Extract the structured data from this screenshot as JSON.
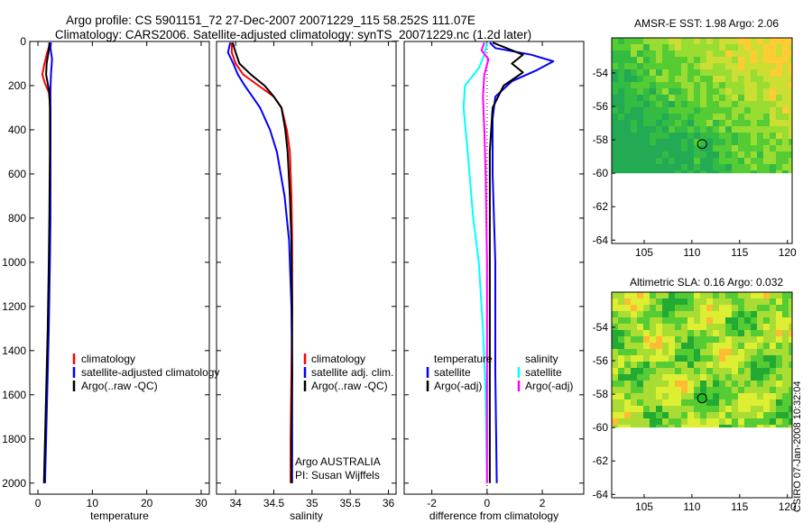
{
  "header": {
    "line1": "Argo profile: CS 5901151_72 27-Dec-2007 20071229_115 58.252S 111.07E",
    "line2": "Climatology: CARS2006. Satellite-adjusted climatology: synTS_20071229.nc (1.2d later)"
  },
  "colors": {
    "red": "#ff0000",
    "blue": "#0000ff",
    "black": "#000000",
    "cyan": "#00ffff",
    "magenta": "#ff00ff"
  },
  "chart_data": [
    {
      "type": "line",
      "id": "temperature",
      "xlabel": "temperature",
      "xlim": [
        -1.5,
        31.5
      ],
      "ylim": [
        0,
        2050
      ],
      "yreversed": true,
      "xticks": [
        0,
        10,
        20,
        30
      ],
      "yticks": [
        0,
        200,
        400,
        600,
        800,
        1000,
        1200,
        1400,
        1600,
        1800,
        2000
      ],
      "legend": {
        "placement": "lower-right",
        "entries": [
          "climatology",
          "satellite-adjusted climatology",
          "Argo(..raw -QC)"
        ]
      },
      "series": [
        {
          "name": "climatology",
          "color": "red",
          "points": [
            [
              2.3,
              5
            ],
            [
              1.7,
              50
            ],
            [
              1.2,
              100
            ],
            [
              0.8,
              150
            ],
            [
              1.3,
              190
            ],
            [
              2.0,
              230
            ],
            [
              2.3,
              300
            ],
            [
              2.3,
              500
            ],
            [
              2.2,
              800
            ],
            [
              2.1,
              1000
            ],
            [
              1.9,
              1300
            ],
            [
              1.7,
              1500
            ],
            [
              1.5,
              1700
            ],
            [
              1.3,
              1900
            ],
            [
              1.2,
              2000
            ]
          ]
        },
        {
          "name": "satellite-adjusted climatology",
          "color": "blue",
          "points": [
            [
              2.4,
              5
            ],
            [
              2.3,
              30
            ],
            [
              2.6,
              80
            ],
            [
              2.4,
              150
            ],
            [
              2.3,
              220
            ],
            [
              2.3,
              300
            ],
            [
              2.3,
              500
            ],
            [
              2.3,
              800
            ],
            [
              2.2,
              1000
            ],
            [
              2.0,
              1300
            ],
            [
              1.8,
              1500
            ],
            [
              1.6,
              1700
            ],
            [
              1.4,
              1900
            ],
            [
              1.3,
              2000
            ]
          ]
        },
        {
          "name": "Argo(..raw -QC)",
          "color": "black",
          "points": [
            [
              2.1,
              5
            ],
            [
              2.0,
              40
            ],
            [
              1.6,
              100
            ],
            [
              1.5,
              150
            ],
            [
              1.8,
              190
            ],
            [
              2.1,
              230
            ],
            [
              2.2,
              300
            ],
            [
              2.2,
              500
            ],
            [
              2.1,
              800
            ],
            [
              2.0,
              1000
            ],
            [
              1.8,
              1300
            ],
            [
              1.6,
              1500
            ],
            [
              1.4,
              1700
            ],
            [
              1.2,
              1900
            ],
            [
              1.1,
              2000
            ]
          ]
        }
      ]
    },
    {
      "type": "line",
      "id": "salinity",
      "xlabel": "salinity",
      "xlim": [
        33.75,
        36.1
      ],
      "ylim": [
        0,
        2050
      ],
      "yreversed": true,
      "xticks": [
        34,
        34.5,
        35,
        35.5,
        36
      ],
      "xticklabels": [
        "34",
        "34.5",
        "35",
        "35.5",
        "36"
      ],
      "legend": {
        "placement": "lower-right",
        "entries": [
          "climatology",
          "satellite adj. clim.",
          "Argo(..raw -QC)"
        ]
      },
      "annotation": [
        "Argo AUSTRALIA",
        "PI: Susan Wijffels"
      ],
      "series": [
        {
          "name": "climatology",
          "color": "red",
          "points": [
            [
              33.95,
              5
            ],
            [
              33.95,
              50
            ],
            [
              34.0,
              100
            ],
            [
              34.1,
              150
            ],
            [
              34.3,
              200
            ],
            [
              34.5,
              250
            ],
            [
              34.6,
              300
            ],
            [
              34.67,
              400
            ],
            [
              34.71,
              500
            ],
            [
              34.73,
              700
            ],
            [
              34.74,
              900
            ],
            [
              34.74,
              1200
            ],
            [
              34.73,
              1500
            ],
            [
              34.72,
              1800
            ],
            [
              34.72,
              2000
            ]
          ]
        },
        {
          "name": "satellite adj. clim.",
          "color": "blue",
          "points": [
            [
              33.93,
              5
            ],
            [
              33.9,
              50
            ],
            [
              33.97,
              100
            ],
            [
              34.03,
              150
            ],
            [
              34.12,
              200
            ],
            [
              34.22,
              250
            ],
            [
              34.32,
              300
            ],
            [
              34.45,
              400
            ],
            [
              34.54,
              500
            ],
            [
              34.64,
              700
            ],
            [
              34.7,
              900
            ],
            [
              34.73,
              1200
            ],
            [
              34.74,
              1500
            ],
            [
              34.74,
              1800
            ],
            [
              34.74,
              2000
            ]
          ]
        },
        {
          "name": "Argo(..raw -QC)",
          "color": "black",
          "points": [
            [
              33.96,
              5
            ],
            [
              34.0,
              50
            ],
            [
              34.05,
              100
            ],
            [
              34.2,
              150
            ],
            [
              34.38,
              200
            ],
            [
              34.5,
              250
            ],
            [
              34.6,
              300
            ],
            [
              34.65,
              400
            ],
            [
              34.68,
              500
            ],
            [
              34.71,
              700
            ],
            [
              34.73,
              900
            ],
            [
              34.74,
              1200
            ],
            [
              34.74,
              1500
            ],
            [
              34.73,
              1800
            ],
            [
              34.73,
              2000
            ]
          ]
        }
      ]
    },
    {
      "type": "line",
      "id": "difference",
      "xlabel": "difference from climatology",
      "xlim": [
        -3.0,
        3.5
      ],
      "ylim": [
        0,
        2050
      ],
      "yreversed": true,
      "xticks": [
        -2,
        0,
        2
      ],
      "legend": {
        "placement": "lower-right",
        "groups": [
          {
            "title": "temperature",
            "entries": [
              "satellite",
              "Argo(-adj)"
            ]
          },
          {
            "title": "salinity",
            "entries": [
              "satellite",
              "Argo(-adj)"
            ]
          }
        ]
      },
      "series": [
        {
          "name": "temperature satellite",
          "color": "blue",
          "points": [
            [
              0.1,
              5
            ],
            [
              0.3,
              30
            ],
            [
              1.6,
              60
            ],
            [
              2.4,
              90
            ],
            [
              1.8,
              130
            ],
            [
              0.9,
              180
            ],
            [
              0.3,
              250
            ],
            [
              0.2,
              350
            ],
            [
              0.2,
              600
            ],
            [
              0.3,
              1000
            ],
            [
              0.3,
              1500
            ],
            [
              0.35,
              2000
            ]
          ]
        },
        {
          "name": "temperature Argo(-adj)",
          "color": "black",
          "points": [
            [
              0.2,
              5
            ],
            [
              0.7,
              30
            ],
            [
              1.3,
              60
            ],
            [
              0.9,
              100
            ],
            [
              1.3,
              140
            ],
            [
              0.6,
              200
            ],
            [
              0.2,
              300
            ],
            [
              0.1,
              500
            ],
            [
              0.1,
              1000
            ],
            [
              0.1,
              1500
            ],
            [
              0.1,
              2000
            ]
          ]
        },
        {
          "name": "salinity satellite",
          "color": "cyan",
          "points": [
            [
              0,
              5
            ],
            [
              -0.1,
              60
            ],
            [
              -0.3,
              120
            ],
            [
              -0.8,
              200
            ],
            [
              -0.85,
              300
            ],
            [
              -0.7,
              500
            ],
            [
              -0.5,
              800
            ],
            [
              -0.3,
              1000
            ],
            [
              -0.15,
              1300
            ],
            [
              -0.05,
              1600
            ],
            [
              0,
              2000
            ]
          ]
        },
        {
          "name": "salinity Argo(-adj)",
          "color": "magenta",
          "points": [
            [
              -0.1,
              5
            ],
            [
              -0.2,
              40
            ],
            [
              0.05,
              80
            ],
            [
              -0.1,
              150
            ],
            [
              -0.15,
              250
            ],
            [
              -0.1,
              400
            ],
            [
              -0.05,
              600
            ],
            [
              0,
              1000
            ],
            [
              0,
              1500
            ],
            [
              0,
              2000
            ]
          ]
        }
      ]
    },
    {
      "type": "heatmap",
      "id": "sst-map",
      "title": "AMSR-E SST: 1.98 Argo: 2.06",
      "xlim": [
        101.6,
        120.5
      ],
      "ylim": [
        -64.2,
        -51.9
      ],
      "xticks": [
        105,
        110,
        115,
        120
      ],
      "yticks": [
        -54,
        -56,
        -58,
        -60,
        -62,
        -64
      ],
      "data_extent": {
        "lat_min": -60,
        "lat_max": -52
      },
      "marker": {
        "lon": 111.07,
        "lat": -58.25,
        "filled": false
      }
    },
    {
      "type": "heatmap",
      "id": "sla-map",
      "title": "Altimetric SLA: 0.16 Argo: 0.032",
      "xlim": [
        101.6,
        120.5
      ],
      "ylim": [
        -64.2,
        -51.9
      ],
      "xticks": [
        105,
        110,
        115,
        120
      ],
      "yticks": [
        -54,
        -56,
        -58,
        -60,
        -62,
        -64
      ],
      "data_extent": {
        "lat_min": -60,
        "lat_max": -52
      },
      "marker": {
        "lon": 111.07,
        "lat": -58.25,
        "filled": true
      }
    }
  ],
  "footer": {
    "stamp": "CSIRO 07-Jan-2008 10:32:04"
  }
}
